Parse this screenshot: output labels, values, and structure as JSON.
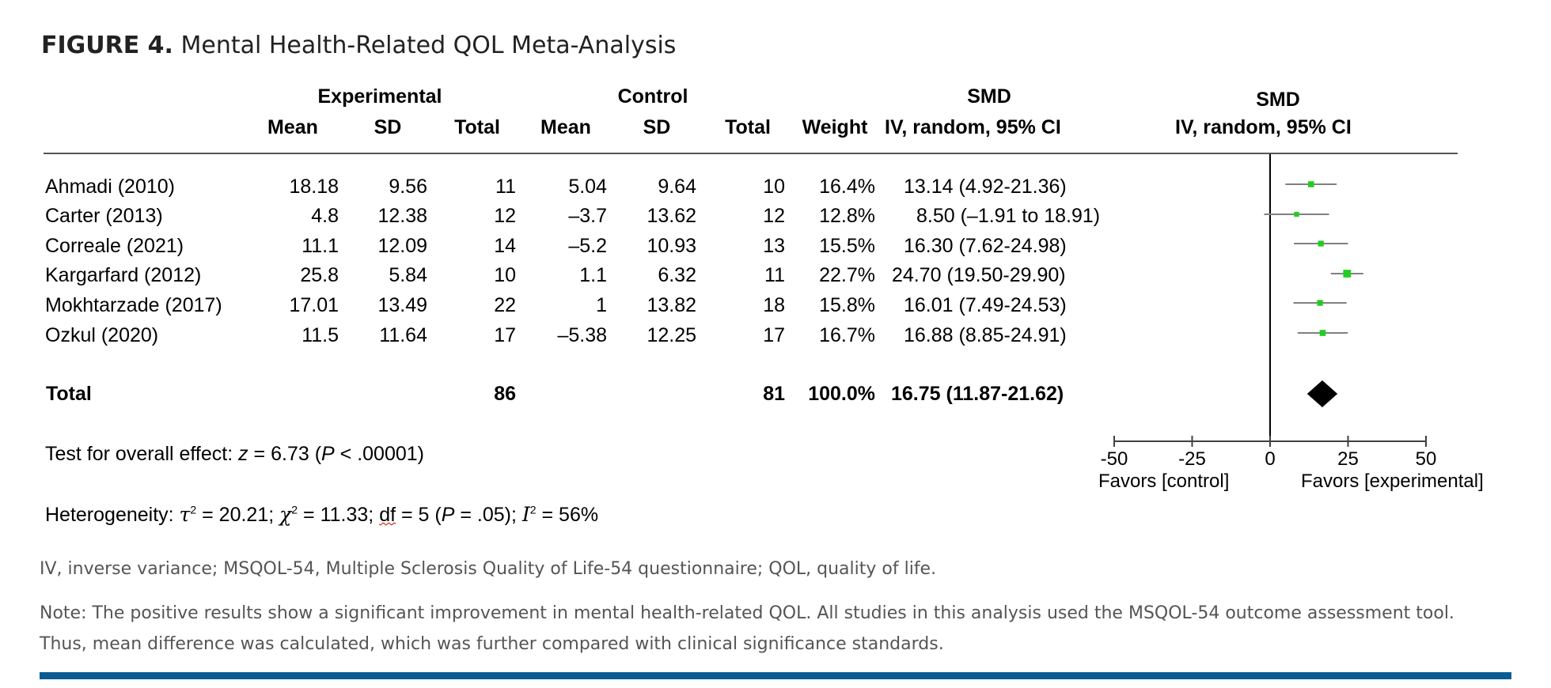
{
  "figure": {
    "label": "FIGURE 4.",
    "title": "Mental Health-Related QOL Meta-Analysis"
  },
  "headers": {
    "experimental": "Experimental",
    "control": "Control",
    "smd": "SMD",
    "mean": "Mean",
    "sd": "SD",
    "total": "Total",
    "weight": "Weight",
    "method": "IV,  random, 95% CI",
    "plot_smd": "SMD",
    "plot_method": "IV,  random, 95% CI"
  },
  "chart_data": {
    "type": "forest",
    "title": "Mental Health-Related QOL Meta-Analysis",
    "xlim": [
      -50,
      50
    ],
    "xticks": [
      -50,
      -25,
      0,
      25,
      50
    ],
    "xtick_labels": [
      "-50",
      "-25",
      "0",
      "25",
      "50"
    ],
    "xlabel_left": "Favors [control]",
    "xlabel_right": "Favors [experimental]",
    "studies": [
      {
        "name": "Ahmadi (2010)",
        "exp_mean": "18.18",
        "exp_sd": "9.56",
        "exp_total": "11",
        "ctl_mean": "5.04",
        "ctl_sd": "9.64",
        "ctl_total": "10",
        "weight": "16.4%",
        "ci_text": "13.14 (4.92-21.36)",
        "smd": 13.14,
        "lo": 4.92,
        "hi": 21.36
      },
      {
        "name": "Carter (2013)",
        "exp_mean": "4.8",
        "exp_sd": "12.38",
        "exp_total": "12",
        "ctl_mean": "–3.7",
        "ctl_sd": "13.62",
        "ctl_total": "12",
        "weight": "12.8%",
        "ci_text": "8.50  (–1.91 to 18.91)",
        "smd": 8.5,
        "lo": -1.91,
        "hi": 18.91
      },
      {
        "name": "Correale (2021)",
        "exp_mean": "11.1",
        "exp_sd": "12.09",
        "exp_total": "14",
        "ctl_mean": "–5.2",
        "ctl_sd": "10.93",
        "ctl_total": "13",
        "weight": "15.5%",
        "ci_text": "16.30 (7.62-24.98)",
        "smd": 16.3,
        "lo": 7.62,
        "hi": 24.98
      },
      {
        "name": "Kargarfard (2012)",
        "exp_mean": "25.8",
        "exp_sd": "5.84",
        "exp_total": "10",
        "ctl_mean": "1.1",
        "ctl_sd": "6.32",
        "ctl_total": "11",
        "weight": "22.7%",
        "ci_text": "24.70  (19.50-29.90)",
        "smd": 24.7,
        "lo": 19.5,
        "hi": 29.9
      },
      {
        "name": "Mokhtarzade (2017)",
        "exp_mean": "17.01",
        "exp_sd": "13.49",
        "exp_total": "22",
        "ctl_mean": "1",
        "ctl_sd": "13.82",
        "ctl_total": "18",
        "weight": "15.8%",
        "ci_text": "16.01 (7.49-24.53)",
        "smd": 16.01,
        "lo": 7.49,
        "hi": 24.53
      },
      {
        "name": "Ozkul (2020)",
        "exp_mean": "11.5",
        "exp_sd": "11.64",
        "exp_total": "17",
        "ctl_mean": "–5.38",
        "ctl_sd": "12.25",
        "ctl_total": "17",
        "weight": "16.7%",
        "ci_text": "16.88 (8.85-24.91)",
        "smd": 16.88,
        "lo": 8.85,
        "hi": 24.91
      }
    ],
    "total": {
      "name": "Total",
      "exp_total": "86",
      "ctl_total": "81",
      "weight": "100.0%",
      "ci_text": "16.75 (11.87-21.62)",
      "smd": 16.75,
      "lo": 11.87,
      "hi": 21.62
    }
  },
  "stats": {
    "overall_prefix": "Test for overall effect:",
    "overall_z": "z",
    "overall_z_value": " = 6.73 (",
    "overall_p": "P",
    "overall_p_value": " < .00001)",
    "het_prefix": "Heterogeneity: ",
    "tau": "τ",
    "tau_value": " = 20.21; ",
    "chi": "χ",
    "chi_value": " = 11.33; ",
    "df": "df",
    "df_value": " = 5 (",
    "het_p": "P",
    "het_p_value": " = .05); ",
    "i2": "I",
    "i2_value": " = 56%",
    "sup2": "2"
  },
  "notes": {
    "abbrev": "IV, inverse variance; MSQOL-54, Multiple Sclerosis Quality of Life-54 questionnaire; QOL, quality of life.",
    "note1": "Note: The positive results show a significant improvement in mental health-related QOL. All studies in this analysis used the MSQOL-54 outcome assessment tool.",
    "note2": "Thus, mean difference was calculated, which was further compared with clinical significance standards."
  },
  "colors": {
    "marker": "#22cc22",
    "ci_line": "#808080",
    "diamond": "#000000",
    "axis": "#404040",
    "rule": "#0b5c93"
  }
}
